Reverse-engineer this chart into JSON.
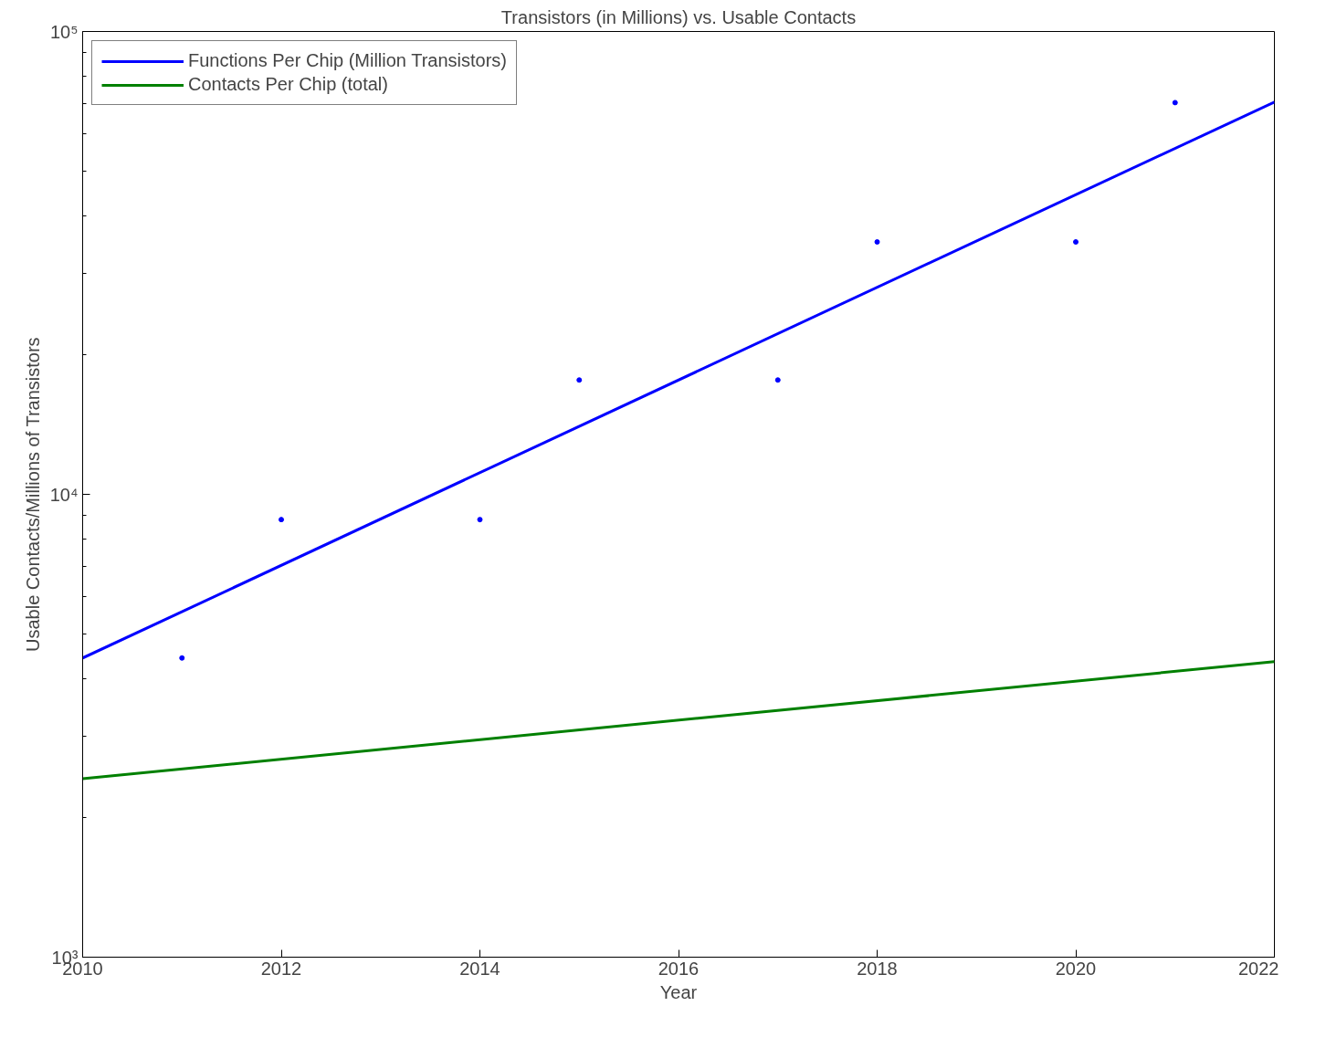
{
  "chart_data": {
    "type": "line",
    "title": "Transistors (in Millions) vs. Usable Contacts",
    "xlabel": "Year",
    "ylabel": "Usable Contacts/Millions of Transistors",
    "log": "y",
    "xlim": [
      2010,
      2022
    ],
    "xticks": [
      2010,
      2012,
      2014,
      2016,
      2018,
      2020,
      2022
    ],
    "ylim": [
      1000,
      100000
    ],
    "yticks": [
      {
        "value": 1000,
        "label": "10³"
      },
      {
        "value": 10000,
        "label": "10⁴"
      },
      {
        "value": 100000,
        "label": "10⁵"
      }
    ],
    "grid": false,
    "legend": "top left",
    "series": [
      {
        "name": "Functions Per Chip (Million Transistors)",
        "color": "#0000ff",
        "x": [
          2010,
          2022
        ],
        "values": [
          4430,
          70400
        ]
      },
      {
        "name": "Contacts Per Chip (total)",
        "color": "#008000",
        "x": [
          2010,
          2022
        ],
        "values": [
          2430,
          4350
        ]
      },
      {
        "type": "scatter",
        "marker": "circle",
        "color": "#0000ff",
        "x": [
          2011,
          2012,
          2014,
          2015,
          2017,
          2018,
          2020,
          2021
        ],
        "values": [
          4430,
          8820,
          8820,
          17660,
          17660,
          35100,
          35100,
          70200
        ]
      }
    ]
  }
}
